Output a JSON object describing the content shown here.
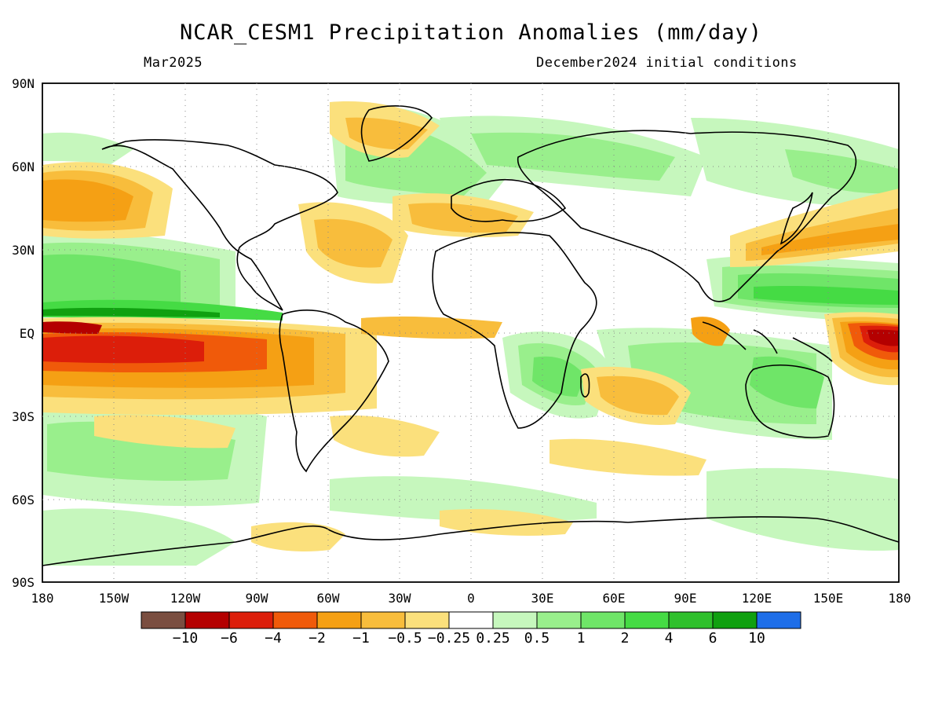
{
  "title": "NCAR_CESM1 Precipitation Anomalies (mm/day)",
  "valid_month": "Mar2025",
  "initial_conditions": "December2024 initial conditions",
  "lat_labels": [
    "90N",
    "60N",
    "30N",
    "EQ",
    "30S",
    "60S",
    "90S"
  ],
  "lon_labels": [
    "180",
    "150W",
    "120W",
    "90W",
    "60W",
    "30W",
    "0",
    "30E",
    "60E",
    "90E",
    "120E",
    "150E",
    "180"
  ],
  "colorbar": {
    "labels": [
      "-10",
      "-6",
      "-4",
      "-2",
      "-1",
      "-0.5",
      "-0.25",
      "0.25",
      "0.5",
      "1",
      "2",
      "4",
      "6",
      "10"
    ],
    "colors": [
      "#7a4e40",
      "#b40000",
      "#dc1e0a",
      "#f05a0a",
      "#f5a014",
      "#f8bd3c",
      "#fbe07c",
      "#ffffff",
      "#c6f7bd",
      "#99ef8c",
      "#6fe568",
      "#45db44",
      "#2fc02c",
      "#10a010",
      "#1e6ee8"
    ]
  },
  "icons": [
    "world-coastline-map",
    "precipitation-anomaly-shading"
  ]
}
